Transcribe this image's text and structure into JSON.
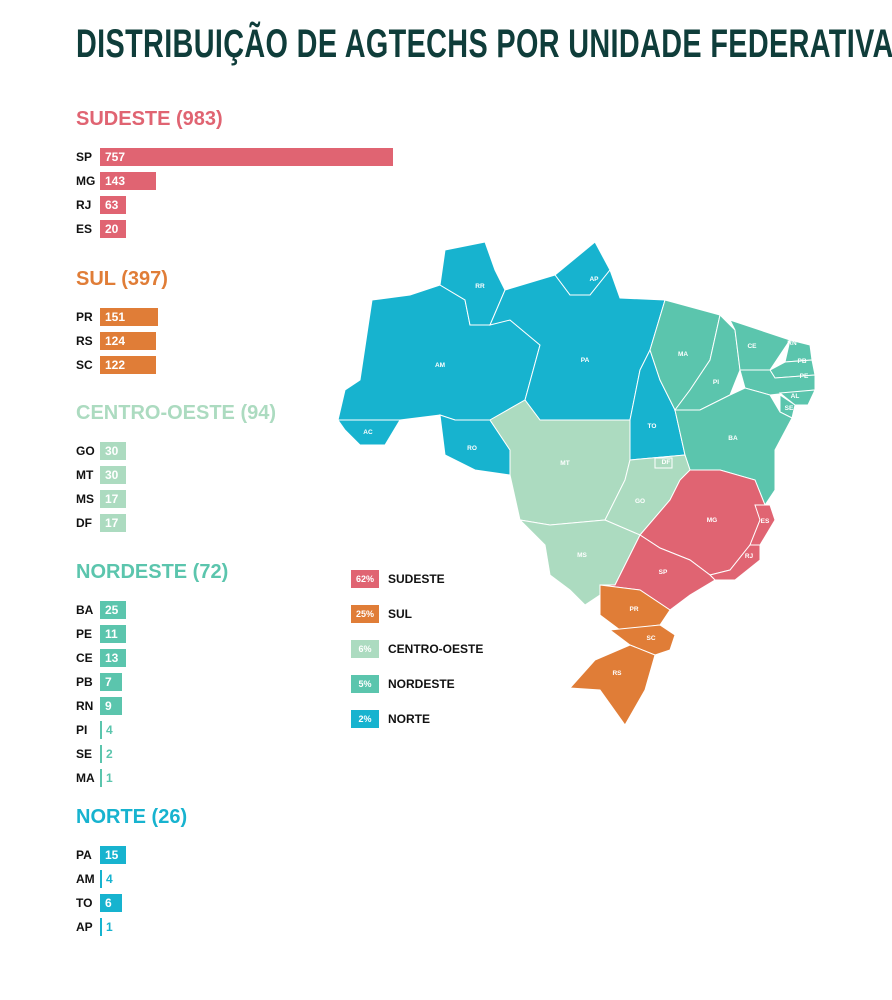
{
  "title": "DISTRIBUIÇÃO DE AGTECHS POR UNIDADE FEDERATIVA",
  "chart_data": {
    "type": "bar",
    "title": "DISTRIBUIÇÃO DE AGTECHS POR UNIDADE FEDERATIVA",
    "groups": [
      {
        "name": "SUDESTE",
        "heading": "SUDESTE (983)",
        "total": 983,
        "color": "#e06472",
        "share": "62%",
        "items": [
          {
            "uf": "SP",
            "v": 757
          },
          {
            "uf": "MG",
            "v": 143
          },
          {
            "uf": "RJ",
            "v": 63
          },
          {
            "uf": "ES",
            "v": 20
          }
        ]
      },
      {
        "name": "SUL",
        "heading": "SUL (397)",
        "total": 397,
        "color": "#e07d37",
        "share": "25%",
        "items": [
          {
            "uf": "PR",
            "v": 151
          },
          {
            "uf": "RS",
            "v": 124
          },
          {
            "uf": "SC",
            "v": 122
          }
        ]
      },
      {
        "name": "CENTRO-OESTE",
        "heading": "CENTRO-OESTE (94)",
        "total": 94,
        "color": "#acdbc0",
        "share": "6%",
        "items": [
          {
            "uf": "GO",
            "v": 30
          },
          {
            "uf": "MT",
            "v": 30
          },
          {
            "uf": "MS",
            "v": 17
          },
          {
            "uf": "DF",
            "v": 17
          }
        ]
      },
      {
        "name": "NORDESTE",
        "heading": "NORDESTE (72)",
        "total": 72,
        "color": "#5bc5ad",
        "share": "5%",
        "items": [
          {
            "uf": "BA",
            "v": 25
          },
          {
            "uf": "PE",
            "v": 11
          },
          {
            "uf": "CE",
            "v": 13
          },
          {
            "uf": "PB",
            "v": 7
          },
          {
            "uf": "RN",
            "v": 9
          },
          {
            "uf": "PI",
            "v": 4
          },
          {
            "uf": "SE",
            "v": 2
          },
          {
            "uf": "MA",
            "v": 1
          }
        ]
      },
      {
        "name": "NORTE",
        "heading": "NORTE (26)",
        "total": 26,
        "color": "#17b3cf",
        "share": "2%",
        "items": [
          {
            "uf": "PA",
            "v": 15
          },
          {
            "uf": "AM",
            "v": 4
          },
          {
            "uf": "TO",
            "v": 6
          },
          {
            "uf": "AP",
            "v": 1
          }
        ]
      }
    ],
    "map_regions": {
      "SUDESTE": [
        "SP",
        "MG",
        "RJ",
        "ES"
      ],
      "SUL": [
        "PR",
        "SC",
        "RS"
      ],
      "CENTRO-OESTE": [
        "MT",
        "MS",
        "GO",
        "DF"
      ],
      "NORDESTE": [
        "MA",
        "PI",
        "CE",
        "RN",
        "PB",
        "PE",
        "AL",
        "SE",
        "BA"
      ],
      "NORTE": [
        "AM",
        "RR",
        "AP",
        "PA",
        "AC",
        "RO",
        "TO"
      ]
    }
  }
}
